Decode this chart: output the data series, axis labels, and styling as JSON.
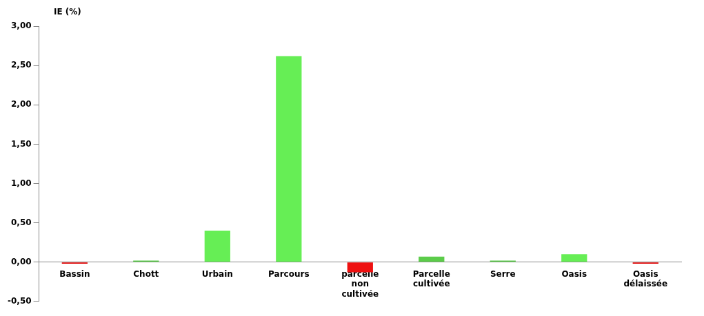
{
  "chart_data": {
    "type": "bar",
    "ylabel": "IE (%)",
    "categories": [
      "Bassin",
      "Chott",
      "Urbain",
      "Parcours",
      "parcelle non cultivée",
      "Parcelle cultivée",
      "Serre",
      "Oasis",
      "Oasis délaissée"
    ],
    "values": [
      -0.02,
      0.02,
      0.4,
      2.62,
      -0.13,
      0.07,
      0.02,
      0.1,
      -0.02
    ],
    "colors": [
      "#e00000",
      "#5ccc4a",
      "#66ee55",
      "#66ee55",
      "#ee1111",
      "#5ccc4a",
      "#5ccc4a",
      "#66ee55",
      "#e00000"
    ],
    "ylim": [
      -0.5,
      3
    ],
    "yticks": [
      {
        "value": -0.5,
        "label": "-0,50"
      },
      {
        "value": 0,
        "label": "0,00"
      },
      {
        "value": 0.5,
        "label": "0,50"
      },
      {
        "value": 1,
        "label": "1,00"
      },
      {
        "value": 1.5,
        "label": "1,50"
      },
      {
        "value": 2,
        "label": "2,00"
      },
      {
        "value": 2.5,
        "label": "2,50"
      },
      {
        "value": 3,
        "label": "3,00"
      }
    ],
    "grid": false,
    "legend": false
  }
}
